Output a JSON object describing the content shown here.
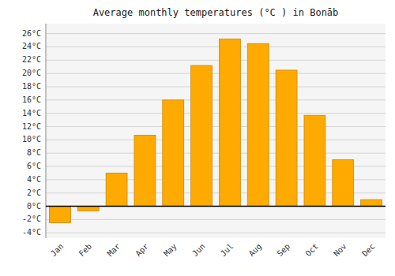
{
  "chart_data": {
    "type": "bar",
    "title": "Average monthly temperatures (°C ) in Bonāb",
    "categories": [
      "Jan",
      "Feb",
      "Mar",
      "Apr",
      "May",
      "Jun",
      "Jul",
      "Aug",
      "Sep",
      "Oct",
      "Nov",
      "Dec"
    ],
    "values": [
      -2.5,
      -0.7,
      5.0,
      10.7,
      16.0,
      21.2,
      25.2,
      24.5,
      20.5,
      13.7,
      7.0,
      1.0
    ],
    "color": "#FFAA00",
    "ylim": [
      -4.8,
      27.5
    ],
    "yticks": [
      {
        "value": -4,
        "label": "-4°C"
      },
      {
        "value": -2,
        "label": "-2°C"
      },
      {
        "value": 0,
        "label": "0°C"
      },
      {
        "value": 2,
        "label": "2°C"
      },
      {
        "value": 4,
        "label": "4°C"
      },
      {
        "value": 6,
        "label": "6°C"
      },
      {
        "value": 8,
        "label": "8°C"
      },
      {
        "value": 10,
        "label": "10°C"
      },
      {
        "value": 12,
        "label": "12°C"
      },
      {
        "value": 14,
        "label": "14°C"
      },
      {
        "value": 16,
        "label": "16°C"
      },
      {
        "value": 18,
        "label": "18°C"
      },
      {
        "value": 20,
        "label": "20°C"
      },
      {
        "value": 22,
        "label": "22°C"
      },
      {
        "value": 24,
        "label": "24°C"
      },
      {
        "value": 26,
        "label": "26°C"
      }
    ],
    "grid": true
  }
}
